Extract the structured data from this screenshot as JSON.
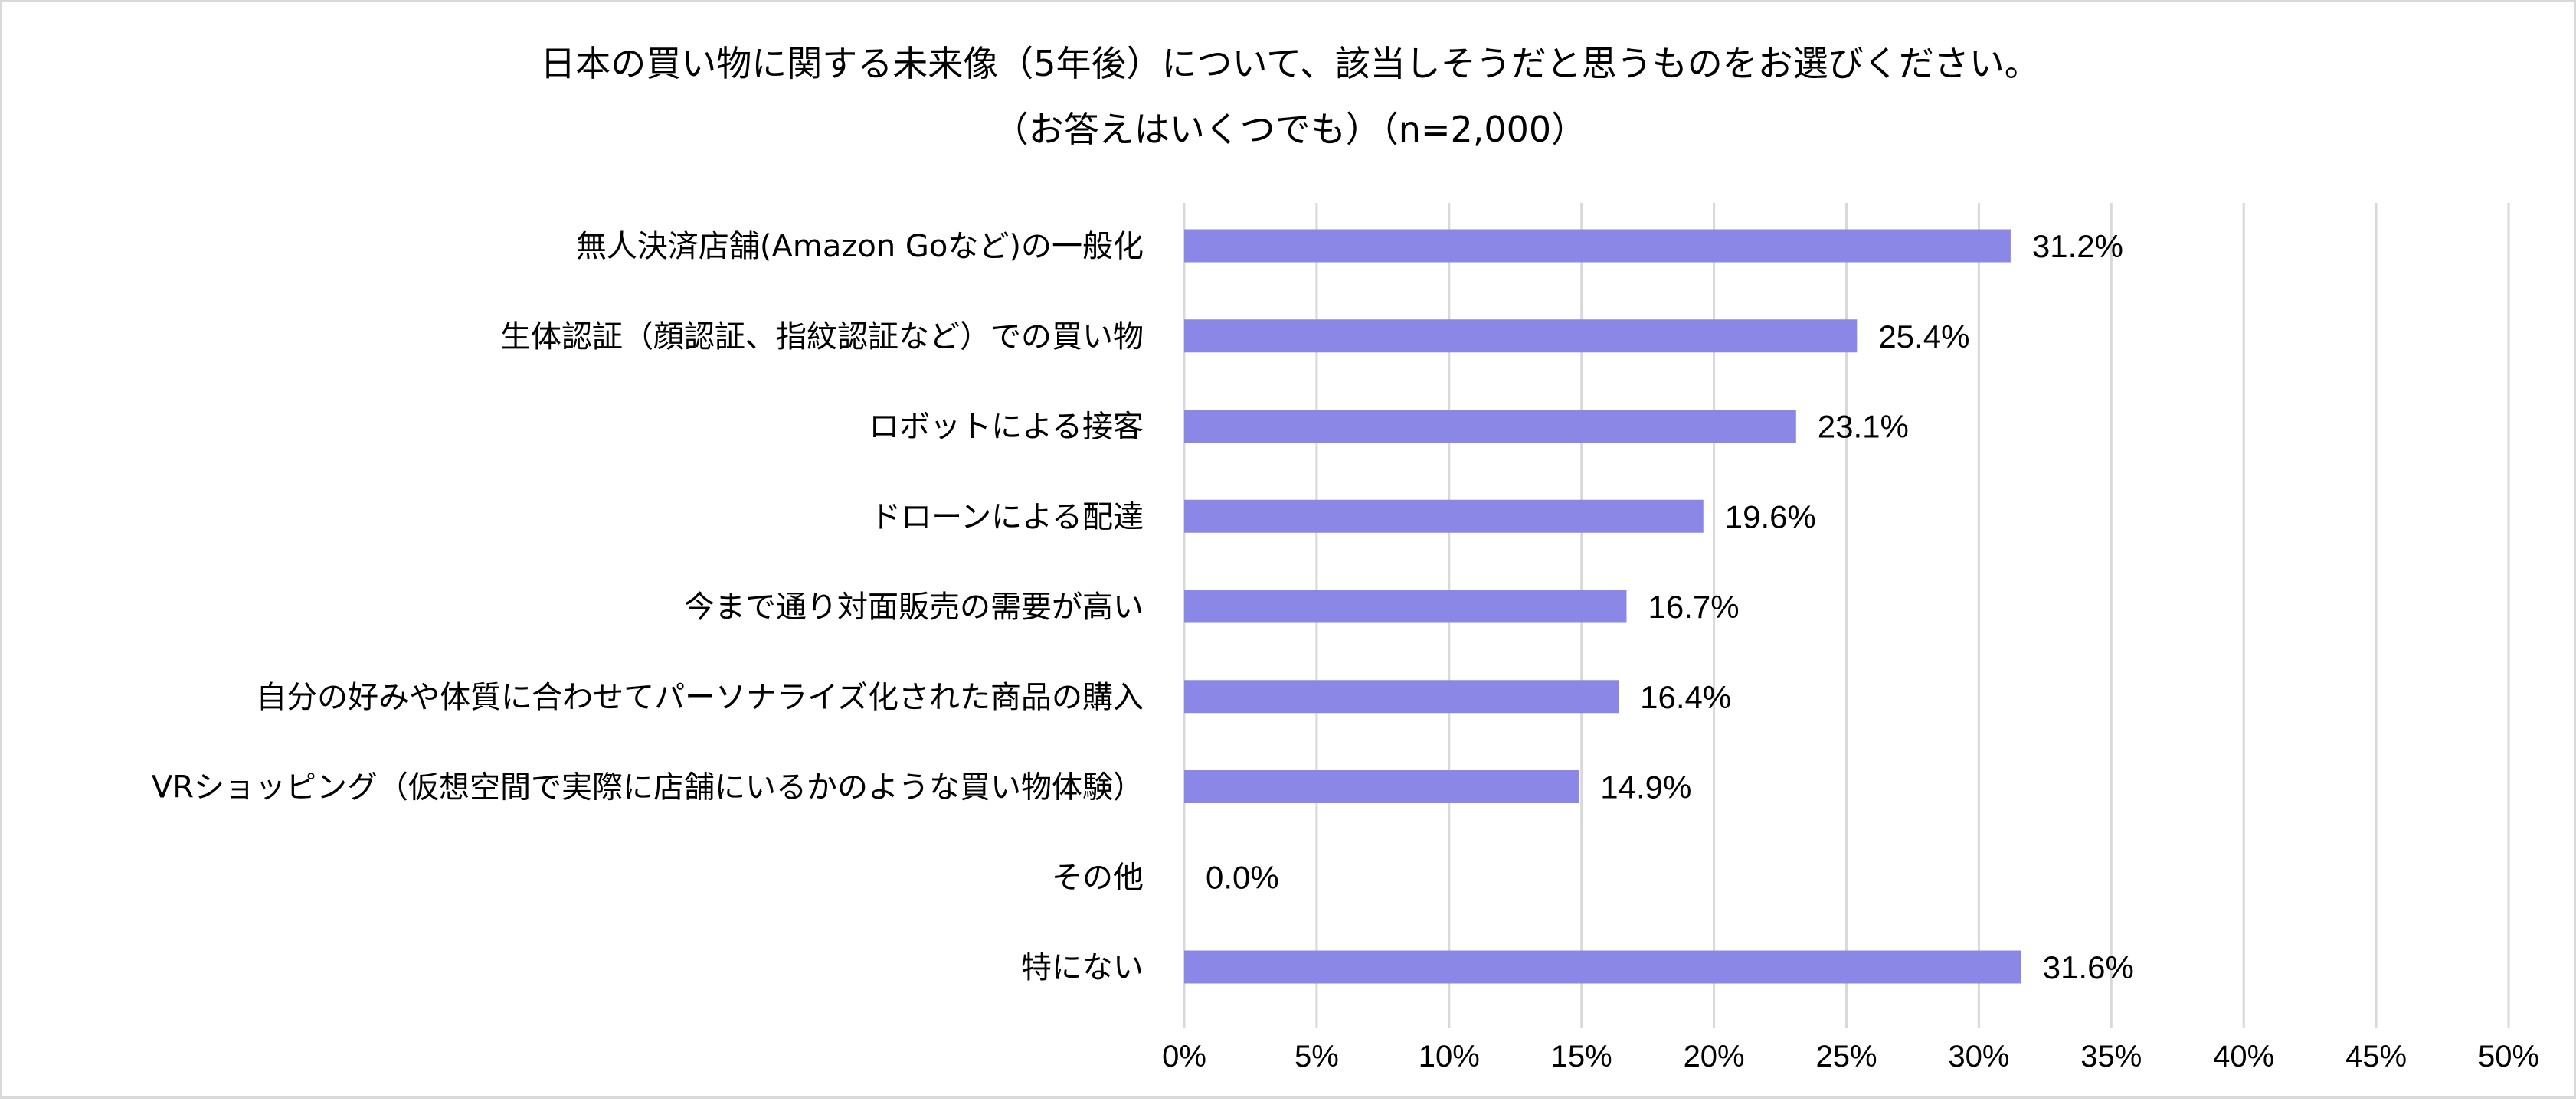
{
  "chart_data": {
    "type": "bar",
    "orientation": "horizontal",
    "title": "日本の買い物に関する未来像（5年後）について、該当しそうだと思うものをお選びください。",
    "subtitle": "（お答えはいくつでも）（n=2,000）",
    "categories": [
      "無人決済店舗(Amazon Goなど)の一般化",
      "生体認証（顔認証、指紋認証など）での買い物",
      "ロボットによる接客",
      "ドローンによる配達",
      "今まで通り対面販売の需要が高い",
      "自分の好みや体質に合わせてパーソナライズ化された商品の購入",
      "VRショッピング（仮想空間で実際に店舗にいるかのような買い物体験）",
      "その他",
      "特にない"
    ],
    "values": [
      31.2,
      25.4,
      23.1,
      19.6,
      16.7,
      16.4,
      14.9,
      0.0,
      31.6
    ],
    "value_labels": [
      "31.2%",
      "25.4%",
      "23.1%",
      "19.6%",
      "16.7%",
      "16.4%",
      "14.9%",
      "0.0%",
      "31.6%"
    ],
    "xlim": [
      0,
      50
    ],
    "x_ticks": [
      0,
      5,
      10,
      15,
      20,
      25,
      30,
      35,
      40,
      45,
      50
    ],
    "x_tick_labels": [
      "0%",
      "5%",
      "10%",
      "15%",
      "20%",
      "25%",
      "30%",
      "35%",
      "40%",
      "45%",
      "50%"
    ],
    "xlabel": "",
    "ylabel": "",
    "grid": true,
    "bar_color": "#8b87e6",
    "grid_color": "#d9d9d9"
  }
}
